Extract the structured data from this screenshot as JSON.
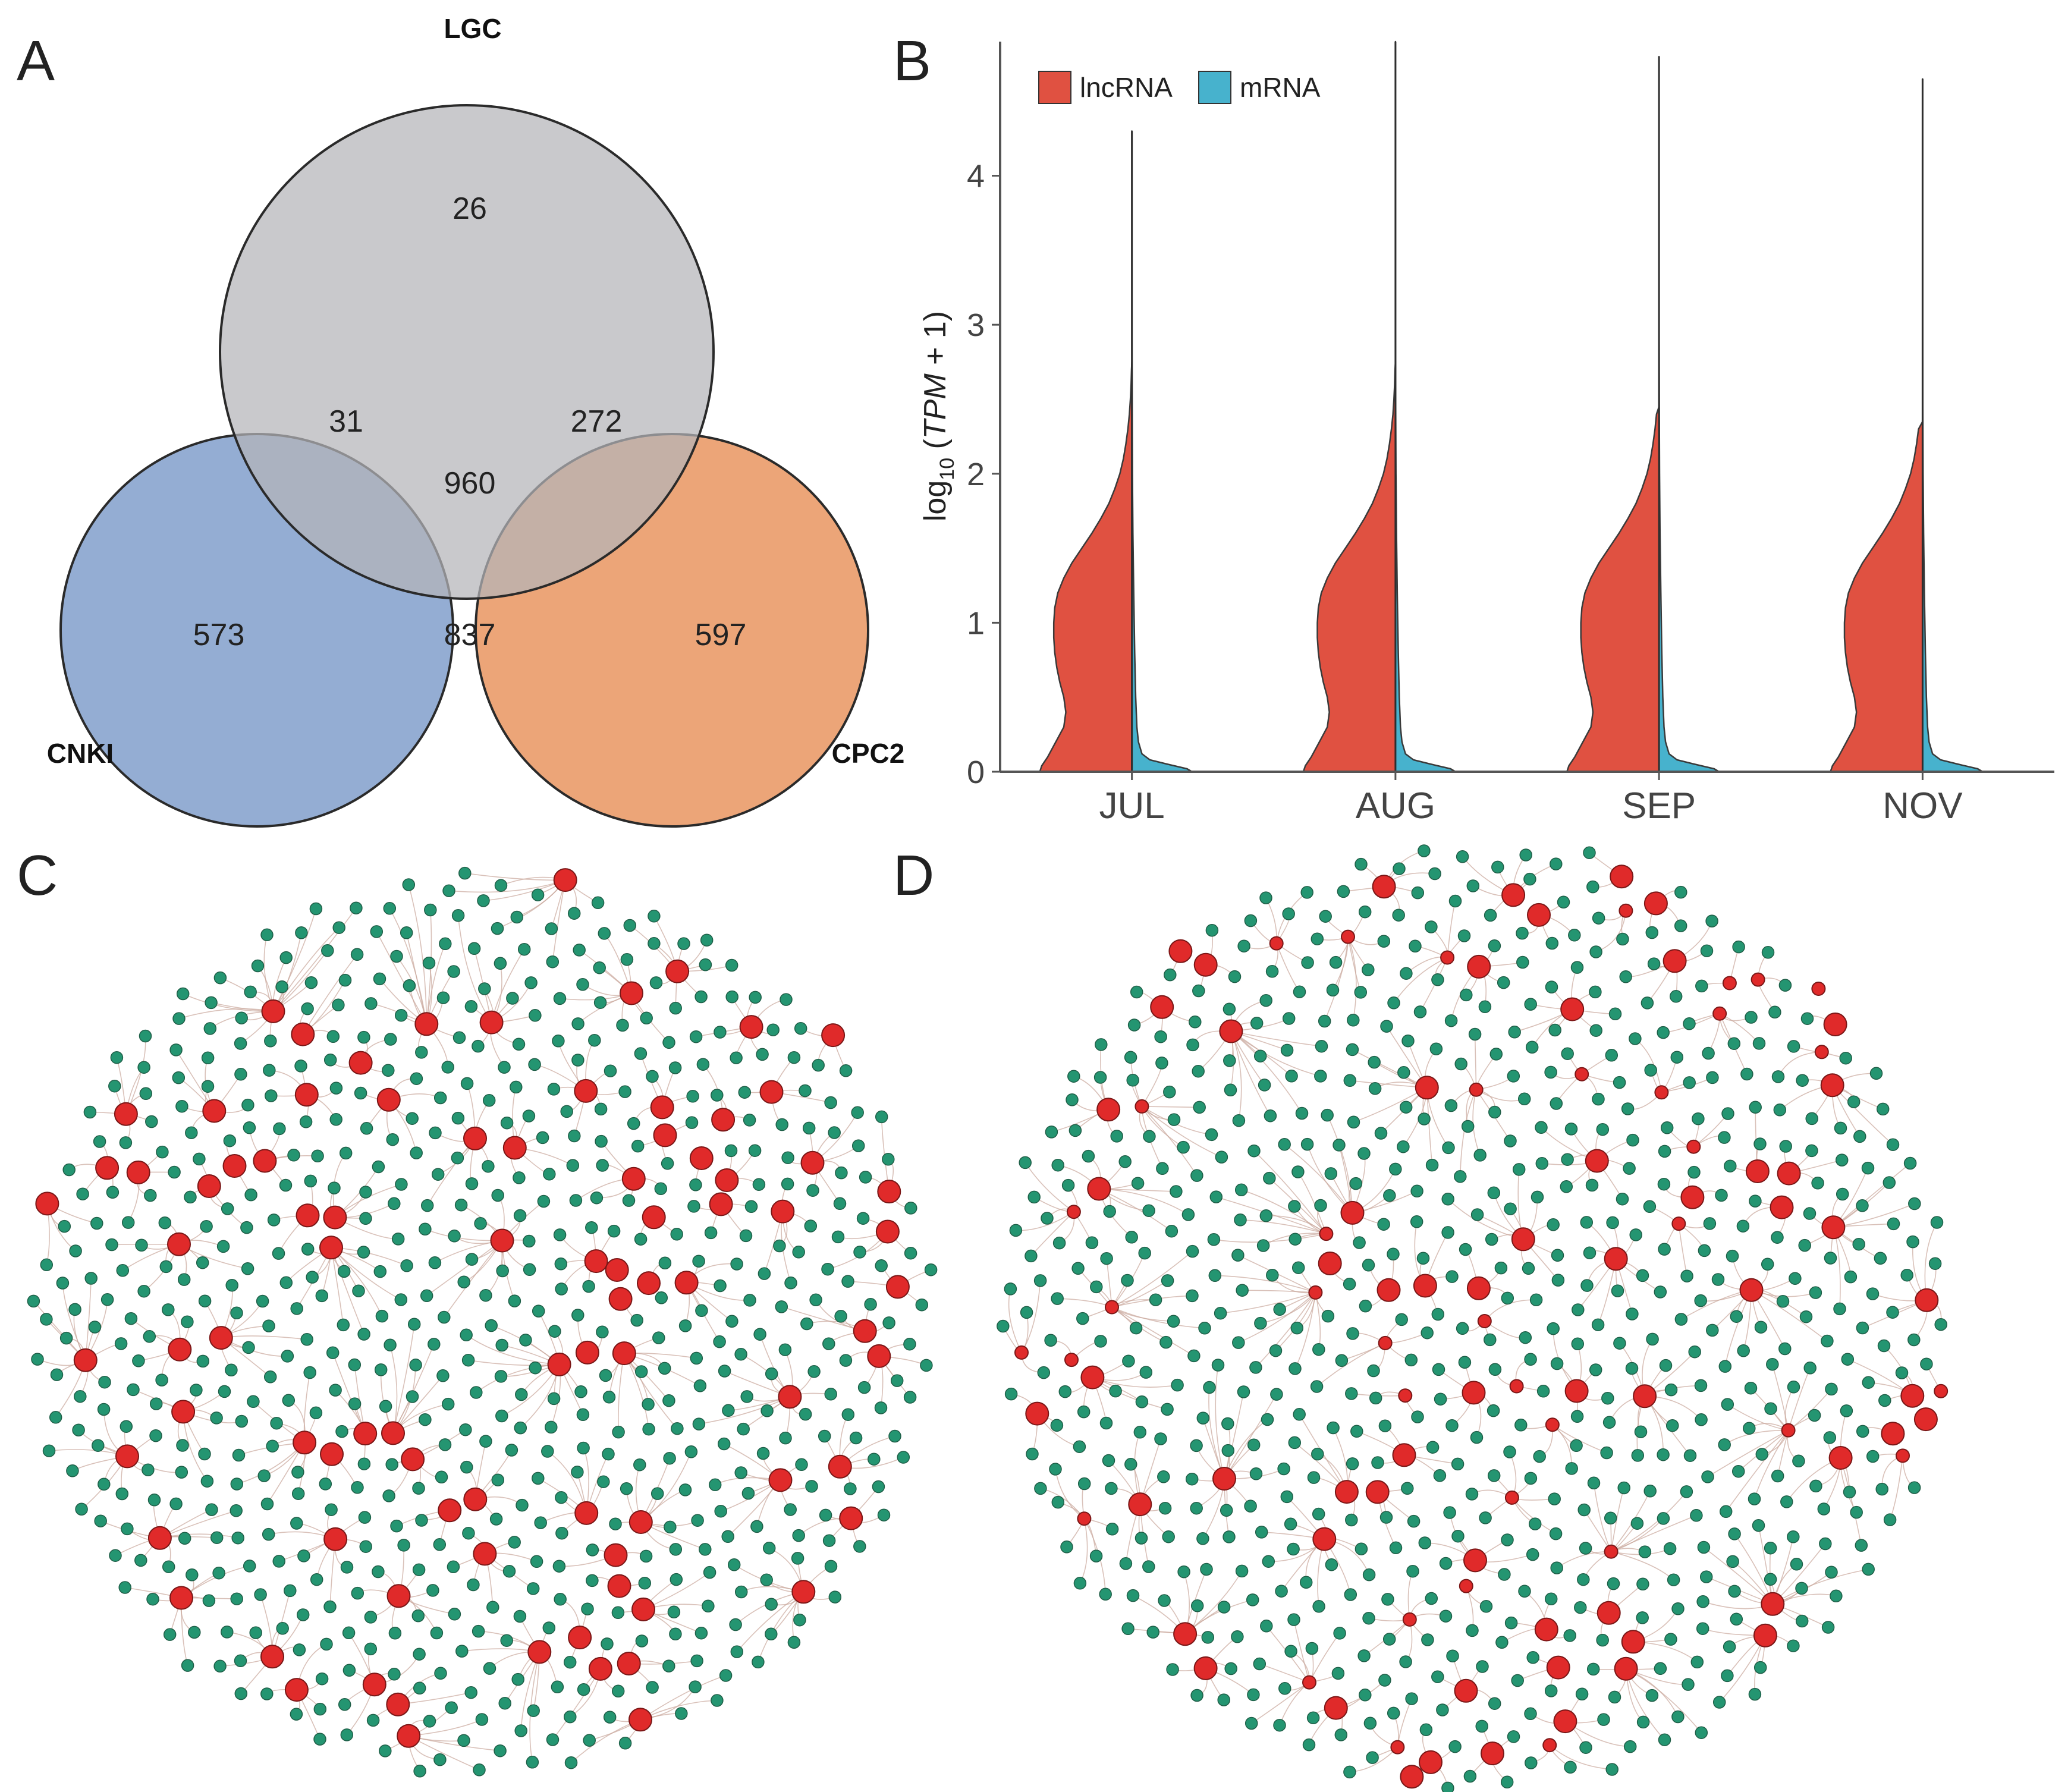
{
  "panels": {
    "a": "A",
    "b": "B",
    "c": "C",
    "d": "D"
  },
  "chart_data": [
    {
      "panel": "A",
      "type": "venn",
      "sets": [
        {
          "name": "LGC",
          "color": "#b4b4b8"
        },
        {
          "name": "CNKI",
          "color": "#7d9bc9"
        },
        {
          "name": "CPC2",
          "color": "#e8915a"
        }
      ],
      "regions": {
        "LGC_only": 26,
        "CNKI_only": 573,
        "CPC2_only": 597,
        "LGC_CNKI": 31,
        "LGC_CPC2": 272,
        "CNKI_CPC2": 837,
        "all_three": 960
      },
      "labels": {
        "LGC_only": "26",
        "CNKI_only": "573",
        "CPC2_only": "597",
        "LGC_CNKI": "31",
        "LGC_CPC2": "272",
        "CNKI_CPC2": "837",
        "all_three": "960"
      }
    },
    {
      "panel": "B",
      "type": "split-violin",
      "categories": [
        "JUL",
        "AUG",
        "SEP",
        "NOV"
      ],
      "yticks": [
        "0",
        "1",
        "2",
        "3",
        "4"
      ],
      "ylim": [
        0,
        4.9
      ],
      "ylabel_parts": {
        "pre": "log",
        "sub": "10",
        "open": " (",
        "italic": "TPM",
        "close": " + 1)"
      },
      "legend": [
        {
          "name": "lncRNA",
          "color": "#e05141"
        },
        {
          "name": "mRNA",
          "color": "#47b2cd"
        }
      ],
      "series": [
        {
          "name": "lncRNA",
          "color": "#e05141",
          "max_values": [
            2.75,
            2.75,
            2.45,
            2.35
          ],
          "profile": [
            {
              "y": 0.0,
              "w": 0.92
            },
            {
              "y": 0.04,
              "w": 0.9
            },
            {
              "y": 0.1,
              "w": 0.84
            },
            {
              "y": 0.2,
              "w": 0.76
            },
            {
              "y": 0.3,
              "w": 0.68
            },
            {
              "y": 0.4,
              "w": 0.66
            },
            {
              "y": 0.5,
              "w": 0.68
            },
            {
              "y": 0.6,
              "w": 0.72
            },
            {
              "y": 0.7,
              "w": 0.75
            },
            {
              "y": 0.8,
              "w": 0.77
            },
            {
              "y": 0.9,
              "w": 0.78
            },
            {
              "y": 1.0,
              "w": 0.78
            },
            {
              "y": 1.1,
              "w": 0.77
            },
            {
              "y": 1.2,
              "w": 0.74
            },
            {
              "y": 1.3,
              "w": 0.68
            },
            {
              "y": 1.4,
              "w": 0.6
            },
            {
              "y": 1.5,
              "w": 0.5
            },
            {
              "y": 1.6,
              "w": 0.4
            },
            {
              "y": 1.7,
              "w": 0.31
            },
            {
              "y": 1.8,
              "w": 0.23
            },
            {
              "y": 1.9,
              "w": 0.17
            },
            {
              "y": 2.0,
              "w": 0.12
            },
            {
              "y": 2.1,
              "w": 0.085
            },
            {
              "y": 2.2,
              "w": 0.06
            },
            {
              "y": 2.3,
              "w": 0.04
            },
            {
              "y": 2.4,
              "w": 0.025
            },
            {
              "y": 2.5,
              "w": 0.015
            },
            {
              "y": 2.6,
              "w": 0.008
            },
            {
              "y": 2.7,
              "w": 0.004
            },
            {
              "y": 2.75,
              "w": 0.0
            }
          ]
        },
        {
          "name": "mRNA",
          "color": "#47b2cd",
          "max_values": [
            4.3,
            4.9,
            4.8,
            4.65
          ],
          "profile": [
            {
              "y": 0.0,
              "w": 0.6
            },
            {
              "y": 0.02,
              "w": 0.55
            },
            {
              "y": 0.05,
              "w": 0.36
            },
            {
              "y": 0.08,
              "w": 0.18
            },
            {
              "y": 0.12,
              "w": 0.1
            },
            {
              "y": 0.2,
              "w": 0.065
            },
            {
              "y": 0.3,
              "w": 0.05
            },
            {
              "y": 0.5,
              "w": 0.038
            },
            {
              "y": 0.8,
              "w": 0.028
            },
            {
              "y": 1.2,
              "w": 0.018
            },
            {
              "y": 1.6,
              "w": 0.01
            },
            {
              "y": 2.0,
              "w": 0.005
            },
            {
              "y": 2.5,
              "w": 0.002
            },
            {
              "y": 3.0,
              "w": 0.0005
            }
          ]
        }
      ]
    },
    {
      "panel": "C",
      "type": "network",
      "node_types": [
        {
          "name": "lncRNA",
          "color": "#e02a2a"
        },
        {
          "name": "mRNA",
          "color": "#249571"
        }
      ],
      "node_count": 740,
      "hub_count": 92,
      "seed": 17
    },
    {
      "panel": "D",
      "type": "network",
      "node_types": [
        {
          "name": "lncRNA",
          "color": "#e02a2a"
        },
        {
          "name": "mRNA",
          "color": "#249571"
        }
      ],
      "node_count": 780,
      "hub_count": 110,
      "seed": 41
    }
  ]
}
